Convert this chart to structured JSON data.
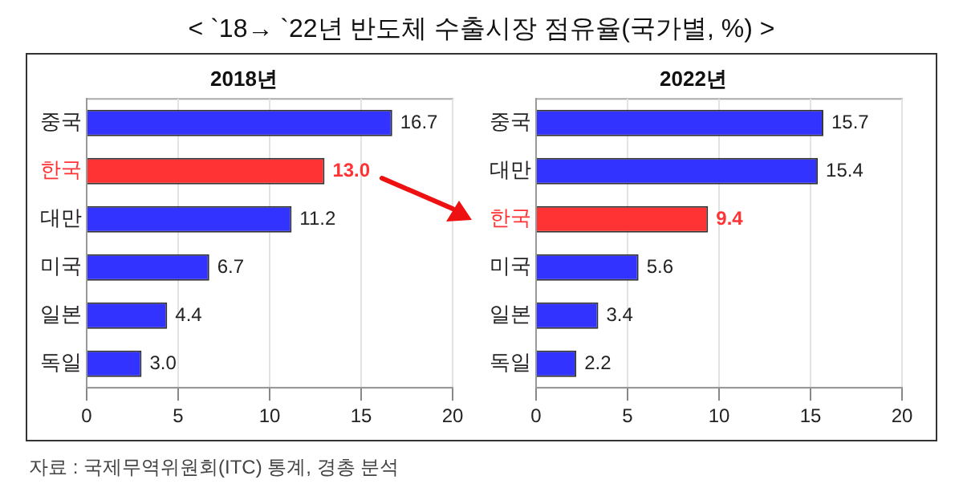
{
  "chart_data": [
    {
      "type": "other",
      "title": "< `18→ `22년 반도체 수출시장 점유율(국가별, %) >",
      "annotations": [
        "자료 : 국제무역위원회(ITC) 통계, 경총 분석"
      ]
    },
    {
      "type": "bar",
      "orientation": "horizontal",
      "title": "2018년",
      "categories": [
        "중국",
        "한국",
        "대만",
        "미국",
        "일본",
        "독일"
      ],
      "values": [
        16.7,
        13.0,
        11.2,
        6.7,
        4.4,
        3.0
      ],
      "colors": [
        "#3333ff",
        "#ff3333",
        "#3333ff",
        "#3333ff",
        "#3333ff",
        "#3333ff"
      ],
      "value_labels": [
        "16.7",
        "13.0",
        "11.2",
        "6.7",
        "4.4",
        "3.0"
      ],
      "xlim": [
        0,
        20
      ],
      "xticks": [
        0,
        5,
        10,
        15,
        20
      ],
      "grid": "x",
      "legend": false
    },
    {
      "type": "bar",
      "orientation": "horizontal",
      "title": "2022년",
      "categories": [
        "중국",
        "대만",
        "한국",
        "미국",
        "일본",
        "독일"
      ],
      "values": [
        15.7,
        15.4,
        9.4,
        5.6,
        3.4,
        2.2
      ],
      "colors": [
        "#3333ff",
        "#3333ff",
        "#ff3333",
        "#3333ff",
        "#3333ff",
        "#3333ff"
      ],
      "value_labels": [
        "15.7",
        "15.4",
        "9.4",
        "5.6",
        "3.4",
        "2.2"
      ],
      "xlim": [
        0,
        20
      ],
      "xticks": [
        0,
        5,
        10,
        15,
        20
      ],
      "grid": "x",
      "legend": false
    }
  ]
}
